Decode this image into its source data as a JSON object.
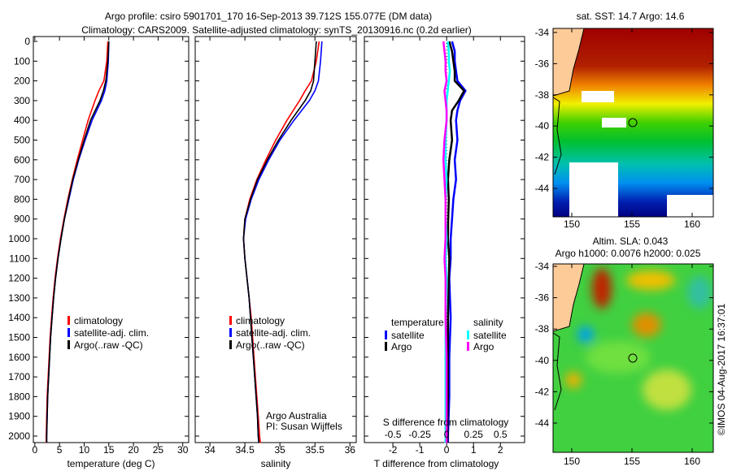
{
  "title_line1": "Argo profile: csiro 5901701_170 16-Sep-2013 39.712S 155.077E (DM data)",
  "title_line2": "Climatology: CARS2009. Satellite-adjusted climatology: synTS_20130916.nc (0.2d earlier)",
  "colors": {
    "climatology": "#ff0000",
    "satellite": "#0000ff",
    "argo": "#000000",
    "sat_salinity": "#00ffff",
    "argo_salinity": "#ff00ff",
    "land": "#fdcb98"
  },
  "chart_data": [
    {
      "type": "line",
      "name": "temperature",
      "xlabel": "temperature (deg C)",
      "ylabel": "",
      "xlim": [
        -0.3,
        31.2
      ],
      "ylim": [
        0,
        2035
      ],
      "xticks": [
        0,
        5,
        10,
        15,
        20,
        25,
        30
      ],
      "yticks": [
        0,
        100,
        200,
        300,
        400,
        500,
        600,
        700,
        800,
        900,
        1000,
        1100,
        1200,
        1300,
        1400,
        1500,
        1600,
        1700,
        1800,
        1900,
        2000
      ],
      "depth": [
        0,
        100,
        200,
        250,
        300,
        400,
        500,
        600,
        700,
        800,
        900,
        1000,
        1100,
        1200,
        1300,
        1400,
        1500,
        1600,
        1700,
        1800,
        1900,
        2000,
        2035
      ],
      "series": [
        {
          "name": "climatology",
          "values": [
            14.8,
            14.6,
            14.0,
            13.0,
            12.2,
            10.8,
            9.7,
            8.6,
            7.6,
            6.7,
            5.9,
            5.2,
            4.6,
            4.1,
            3.7,
            3.4,
            3.1,
            2.9,
            2.7,
            2.5,
            2.4,
            2.3,
            2.3
          ]
        },
        {
          "name": "satellite-adj. clim.",
          "values": [
            15.0,
            14.9,
            14.6,
            14.2,
            13.5,
            11.6,
            10.2,
            8.9,
            7.8,
            6.9,
            6.0,
            5.3,
            4.7,
            4.2,
            3.8,
            3.5,
            3.2,
            3.0,
            2.8,
            2.6,
            2.5,
            2.4,
            2.4
          ]
        },
        {
          "name": "Argo(..raw -QC)",
          "values": [
            15.0,
            14.8,
            14.4,
            13.9,
            13.2,
            11.3,
            10.0,
            8.8,
            7.7,
            6.8,
            6.0,
            5.3,
            4.7,
            4.2,
            3.8,
            3.5,
            3.2,
            3.0,
            2.8,
            2.6,
            2.5,
            2.4,
            2.4
          ]
        }
      ],
      "legend": [
        "climatology",
        "satellite-adj. clim.",
        "Argo(..raw -QC)"
      ]
    },
    {
      "type": "line",
      "name": "salinity",
      "xlabel": "salinity",
      "ylabel": "",
      "xlim": [
        33.79,
        36.09
      ],
      "ylim": [
        0,
        2035
      ],
      "xticks": [
        34,
        34.5,
        35,
        35.5,
        36
      ],
      "xticklabels": [
        "34",
        "34.5",
        "35",
        "35.5",
        "36"
      ],
      "depth": [
        0,
        100,
        200,
        250,
        300,
        400,
        500,
        600,
        700,
        800,
        900,
        1000,
        1100,
        1200,
        1300,
        1400,
        1500,
        1600,
        1700,
        1800,
        1900,
        2000,
        2035
      ],
      "series": [
        {
          "name": "climatology",
          "values": [
            35.56,
            35.52,
            35.45,
            35.36,
            35.28,
            35.1,
            34.94,
            34.8,
            34.67,
            34.57,
            34.5,
            34.48,
            34.5,
            34.53,
            34.56,
            34.59,
            34.61,
            34.63,
            34.65,
            34.67,
            34.69,
            34.71,
            34.72
          ]
        },
        {
          "name": "satellite-adj. clim.",
          "values": [
            35.6,
            35.58,
            35.55,
            35.5,
            35.42,
            35.2,
            35.0,
            34.84,
            34.7,
            34.59,
            34.51,
            34.48,
            34.5,
            34.53,
            34.56,
            34.58,
            34.6,
            34.62,
            34.64,
            34.66,
            34.68,
            34.69,
            34.7
          ]
        },
        {
          "name": "Argo(..raw -QC)",
          "values": [
            35.52,
            35.5,
            35.48,
            35.44,
            35.36,
            35.16,
            34.98,
            34.82,
            34.68,
            34.58,
            34.5,
            34.48,
            34.5,
            34.53,
            34.56,
            34.58,
            34.6,
            34.62,
            34.64,
            34.66,
            34.68,
            34.69,
            34.7
          ]
        }
      ],
      "legend": [
        "climatology",
        "satellite-adj. clim.",
        "Argo(..raw -QC)"
      ],
      "annotation": [
        "Argo Australia",
        "PI: Susan Wijffels"
      ]
    },
    {
      "type": "line",
      "name": "differences",
      "xlabel": "T difference from climatology",
      "x2label": "S difference from climatology",
      "xlim": [
        -3.06,
        2.9
      ],
      "ylim": [
        0,
        2035
      ],
      "xticks": [
        -2,
        -1,
        0,
        1,
        2
      ],
      "x2ticks": [
        -0.5,
        -0.25,
        0,
        0.25,
        0.5
      ],
      "x2ticklabels": [
        "-0.5",
        "-0.25",
        "0",
        "0.25",
        "0.5"
      ],
      "depth": [
        0,
        50,
        100,
        150,
        200,
        250,
        300,
        350,
        400,
        500,
        600,
        700,
        800,
        900,
        1000,
        1100,
        1200,
        1400,
        1600,
        1800,
        2000,
        2035
      ],
      "series": [
        {
          "name": "temperature satellite",
          "group": "T",
          "values": [
            0.2,
            0.3,
            0.3,
            0.35,
            0.4,
            0.7,
            0.5,
            0.4,
            0.35,
            0.4,
            0.3,
            0.35,
            0.25,
            0.2,
            0.15,
            0.15,
            0.1,
            0.15,
            0.1,
            0.1,
            0.05,
            0.05
          ]
        },
        {
          "name": "temperature Argo",
          "group": "T",
          "values": [
            0.1,
            0.2,
            0.25,
            0.3,
            0.3,
            0.65,
            0.45,
            0.2,
            0.15,
            0.2,
            0.1,
            0.05,
            0.08,
            0.06,
            0.05,
            0.1,
            0.08,
            0.05,
            0.05,
            0.05,
            0.03,
            0.03
          ]
        },
        {
          "name": "salinity satellite",
          "group": "S",
          "values": [
            0.01,
            0.02,
            0.02,
            0.03,
            0.02,
            0.01,
            0.0,
            0.0,
            0.0,
            -0.01,
            -0.01,
            0.0,
            -0.01,
            -0.01,
            0.0,
            -0.01,
            0.0,
            -0.01,
            -0.01,
            -0.01,
            -0.01,
            -0.01
          ]
        },
        {
          "name": "salinity Argo",
          "group": "S",
          "values": [
            -0.03,
            -0.02,
            -0.01,
            -0.01,
            0.0,
            -0.02,
            -0.01,
            0.0,
            0.0,
            -0.02,
            -0.03,
            -0.02,
            -0.01,
            -0.01,
            -0.01,
            -0.02,
            -0.01,
            -0.01,
            0.0,
            0.0,
            0.0,
            0.0
          ]
        }
      ],
      "legend": {
        "temperature_title": "temperature",
        "salinity_title": "salinity",
        "satellite": "satellite",
        "argo": "Argo"
      }
    }
  ],
  "maps": [
    {
      "title": [
        "sat. SST: 14.7 Argo: 14.6"
      ],
      "xticks": [
        "150",
        "155",
        "160"
      ],
      "yticks": [
        "-34",
        "-36",
        "-38",
        "-40",
        "-42",
        "-44"
      ],
      "marker": [
        155.077,
        -39.712
      ]
    },
    {
      "title": [
        "Altim. SLA: 0.043",
        "Argo h1000: 0.0076 h2000: 0.025"
      ],
      "xticks": [
        "150",
        "155",
        "160"
      ],
      "yticks": [
        "-34",
        "-36",
        "-38",
        "-40",
        "-42",
        "-44"
      ],
      "marker": [
        155.077,
        -39.712
      ]
    }
  ],
  "credit": "©IMOS 04-Aug-2017 16:37:01"
}
